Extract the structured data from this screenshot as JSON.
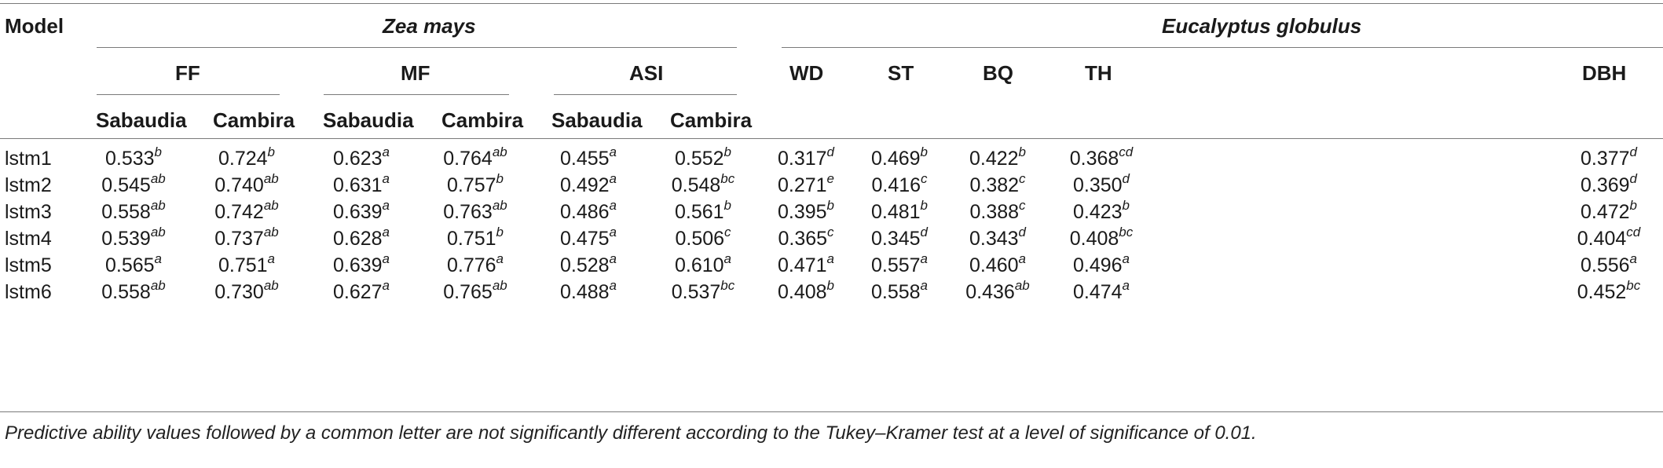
{
  "header": {
    "model": "Model",
    "zea": "Zea mays",
    "euc": "Eucalyptus globulus",
    "ff": "FF",
    "mf": "MF",
    "asi": "ASI",
    "sabaudia": "Sabaudia",
    "cambira": "Cambira",
    "wd": "WD",
    "st": "ST",
    "bq": "BQ",
    "th": "TH",
    "dbh": "DBH"
  },
  "rows": [
    {
      "model": "lstm1",
      "cells": [
        [
          "0.533",
          "b"
        ],
        [
          "0.724",
          "b"
        ],
        [
          "0.623",
          "a"
        ],
        [
          "0.764",
          "ab"
        ],
        [
          "0.455",
          "a"
        ],
        [
          "0.552",
          "b"
        ],
        [
          "0.317",
          "d"
        ],
        [
          "0.469",
          "b"
        ],
        [
          "0.422",
          "b"
        ],
        [
          "0.368",
          "cd"
        ],
        [
          "0.377",
          "d"
        ]
      ]
    },
    {
      "model": "lstm2",
      "cells": [
        [
          "0.545",
          "ab"
        ],
        [
          "0.740",
          "ab"
        ],
        [
          "0.631",
          "a"
        ],
        [
          "0.757",
          "b"
        ],
        [
          "0.492",
          "a"
        ],
        [
          "0.548",
          "bc"
        ],
        [
          "0.271",
          "e"
        ],
        [
          "0.416",
          "c"
        ],
        [
          "0.382",
          "c"
        ],
        [
          "0.350",
          "d"
        ],
        [
          "0.369",
          "d"
        ]
      ]
    },
    {
      "model": "lstm3",
      "cells": [
        [
          "0.558",
          "ab"
        ],
        [
          "0.742",
          "ab"
        ],
        [
          "0.639",
          "a"
        ],
        [
          "0.763",
          "ab"
        ],
        [
          "0.486",
          "a"
        ],
        [
          "0.561",
          "b"
        ],
        [
          "0.395",
          "b"
        ],
        [
          "0.481",
          "b"
        ],
        [
          "0.388",
          "c"
        ],
        [
          "0.423",
          "b"
        ],
        [
          "0.472",
          "b"
        ]
      ]
    },
    {
      "model": "lstm4",
      "cells": [
        [
          "0.539",
          "ab"
        ],
        [
          "0.737",
          "ab"
        ],
        [
          "0.628",
          "a"
        ],
        [
          "0.751",
          "b"
        ],
        [
          "0.475",
          "a"
        ],
        [
          "0.506",
          "c"
        ],
        [
          "0.365",
          "c"
        ],
        [
          "0.345",
          "d"
        ],
        [
          "0.343",
          "d"
        ],
        [
          "0.408",
          "bc"
        ],
        [
          "0.404",
          "cd"
        ]
      ]
    },
    {
      "model": "lstm5",
      "cells": [
        [
          "0.565",
          "a"
        ],
        [
          "0.751",
          "a"
        ],
        [
          "0.639",
          "a"
        ],
        [
          "0.776",
          "a"
        ],
        [
          "0.528",
          "a"
        ],
        [
          "0.610",
          "a"
        ],
        [
          "0.471",
          "a"
        ],
        [
          "0.557",
          "a"
        ],
        [
          "0.460",
          "a"
        ],
        [
          "0.496",
          "a"
        ],
        [
          "0.556",
          "a"
        ]
      ]
    },
    {
      "model": "lstm6",
      "cells": [
        [
          "0.558",
          "ab"
        ],
        [
          "0.730",
          "ab"
        ],
        [
          "0.627",
          "a"
        ],
        [
          "0.765",
          "ab"
        ],
        [
          "0.488",
          "a"
        ],
        [
          "0.537",
          "bc"
        ],
        [
          "0.408",
          "b"
        ],
        [
          "0.558",
          "a"
        ],
        [
          "0.436",
          "ab"
        ],
        [
          "0.474",
          "a"
        ],
        [
          "0.452",
          "bc"
        ]
      ]
    }
  ],
  "footnote": "Predictive ability values followed by a common letter are not significantly different according to the Tukey–Kramer test at a level of significance of 0.01."
}
